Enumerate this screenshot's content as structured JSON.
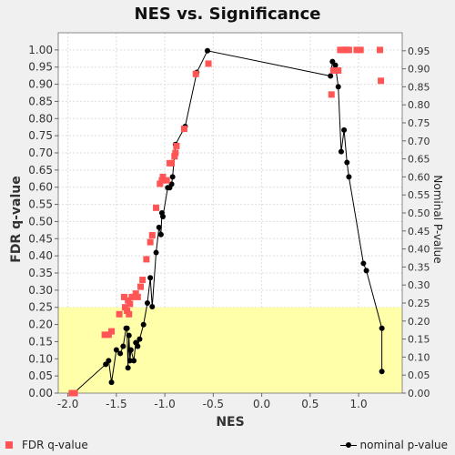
{
  "chart_data": {
    "type": "scatter",
    "title": "NES vs. Significance",
    "xlabel": "NES",
    "ylabel_left": "FDR q-value",
    "ylabel_right": "Nominal P-value",
    "xlim": [
      -2.1,
      1.45
    ],
    "ylim_left": [
      0,
      1.05
    ],
    "ylim_right": [
      0,
      1.0
    ],
    "x_ticks": [
      "-2.0",
      "-1.5",
      "-1.0",
      "-0.5",
      "0.0",
      "0.5",
      "1.0"
    ],
    "x_tick_values": [
      -2.0,
      -1.5,
      -1.0,
      -0.5,
      0.0,
      0.5,
      1.0
    ],
    "y_ticks_left": [
      "0.00",
      "0.05",
      "0.10",
      "0.15",
      "0.20",
      "0.25",
      "0.30",
      "0.35",
      "0.40",
      "0.45",
      "0.50",
      "0.55",
      "0.60",
      "0.65",
      "0.70",
      "0.75",
      "0.80",
      "0.85",
      "0.90",
      "0.95",
      "1.00"
    ],
    "y_ticks_right": [
      "0.00",
      "0.05",
      "0.10",
      "0.15",
      "0.20",
      "0.25",
      "0.30",
      "0.35",
      "0.40",
      "0.45",
      "0.50",
      "0.55",
      "0.60",
      "0.65",
      "0.70",
      "0.75",
      "0.80",
      "0.85",
      "0.90",
      "0.95"
    ],
    "highlight_band": {
      "y_from": 0,
      "y_to": 0.25,
      "color": "#ffffaa"
    },
    "grid": true,
    "colors": {
      "fdr": "#ff5555",
      "nominal": "#000000"
    },
    "series": [
      {
        "name": "FDR q-value",
        "axis": "left",
        "style": "square",
        "points": [
          [
            -1.96,
            0.0
          ],
          [
            -1.93,
            0.0
          ],
          [
            -1.62,
            0.17
          ],
          [
            -1.58,
            0.17
          ],
          [
            -1.55,
            0.18
          ],
          [
            -1.47,
            0.23
          ],
          [
            -1.42,
            0.28
          ],
          [
            -1.41,
            0.25
          ],
          [
            -1.39,
            0.24
          ],
          [
            -1.38,
            0.27
          ],
          [
            -1.37,
            0.23
          ],
          [
            -1.36,
            0.26
          ],
          [
            -1.34,
            0.28
          ],
          [
            -1.3,
            0.29
          ],
          [
            -1.28,
            0.28
          ],
          [
            -1.25,
            0.31
          ],
          [
            -1.23,
            0.33
          ],
          [
            -1.19,
            0.39
          ],
          [
            -1.15,
            0.44
          ],
          [
            -1.13,
            0.46
          ],
          [
            -1.09,
            0.54
          ],
          [
            -1.05,
            0.61
          ],
          [
            -1.03,
            0.62
          ],
          [
            -1.02,
            0.63
          ],
          [
            -0.98,
            0.62
          ],
          [
            -0.95,
            0.67
          ],
          [
            -0.93,
            0.67
          ],
          [
            -0.9,
            0.69
          ],
          [
            -0.89,
            0.7
          ],
          [
            -0.88,
            0.72
          ],
          [
            -0.8,
            0.77
          ],
          [
            -0.68,
            0.93
          ],
          [
            -0.55,
            0.96
          ],
          [
            0.72,
            0.87
          ],
          [
            0.74,
            0.94
          ],
          [
            0.76,
            0.94
          ],
          [
            0.79,
            0.94
          ],
          [
            0.81,
            1.0
          ],
          [
            0.84,
            1.0
          ],
          [
            0.86,
            1.0
          ],
          [
            0.88,
            1.0
          ],
          [
            0.9,
            1.0
          ],
          [
            0.98,
            1.0
          ],
          [
            1.02,
            1.0
          ],
          [
            1.22,
            1.0
          ],
          [
            1.23,
            0.91
          ]
        ]
      },
      {
        "name": "nominal p-value",
        "axis": "right",
        "style": "line",
        "points": [
          [
            -1.94,
            0.0
          ],
          [
            -1.61,
            0.08
          ],
          [
            -1.58,
            0.09
          ],
          [
            -1.55,
            0.03
          ],
          [
            -1.5,
            0.12
          ],
          [
            -1.46,
            0.11
          ],
          [
            -1.43,
            0.13
          ],
          [
            -1.4,
            0.18
          ],
          [
            -1.39,
            0.18
          ],
          [
            -1.38,
            0.07
          ],
          [
            -1.37,
            0.16
          ],
          [
            -1.36,
            0.09
          ],
          [
            -1.35,
            0.12
          ],
          [
            -1.32,
            0.09
          ],
          [
            -1.3,
            0.14
          ],
          [
            -1.28,
            0.13
          ],
          [
            -1.26,
            0.15
          ],
          [
            -1.22,
            0.19
          ],
          [
            -1.18,
            0.25
          ],
          [
            -1.15,
            0.32
          ],
          [
            -1.13,
            0.24
          ],
          [
            -1.09,
            0.39
          ],
          [
            -1.06,
            0.46
          ],
          [
            -1.04,
            0.44
          ],
          [
            -1.03,
            0.5
          ],
          [
            -1.02,
            0.49
          ],
          [
            -0.97,
            0.57
          ],
          [
            -0.95,
            0.57
          ],
          [
            -0.93,
            0.58
          ],
          [
            -0.92,
            0.6
          ],
          [
            -0.89,
            0.69
          ],
          [
            -0.79,
            0.74
          ],
          [
            -0.67,
            0.89
          ],
          [
            -0.56,
            0.95
          ],
          [
            0.71,
            0.88
          ],
          [
            0.73,
            0.92
          ],
          [
            0.76,
            0.91
          ],
          [
            0.79,
            0.85
          ],
          [
            0.82,
            0.67
          ],
          [
            0.85,
            0.73
          ],
          [
            0.88,
            0.64
          ],
          [
            0.9,
            0.6
          ],
          [
            1.05,
            0.36
          ],
          [
            1.08,
            0.34
          ],
          [
            1.24,
            0.18
          ],
          [
            1.24,
            0.06
          ]
        ]
      }
    ]
  },
  "legend": {
    "fdr_label": "FDR q-value",
    "nominal_label": "nominal p-value"
  }
}
